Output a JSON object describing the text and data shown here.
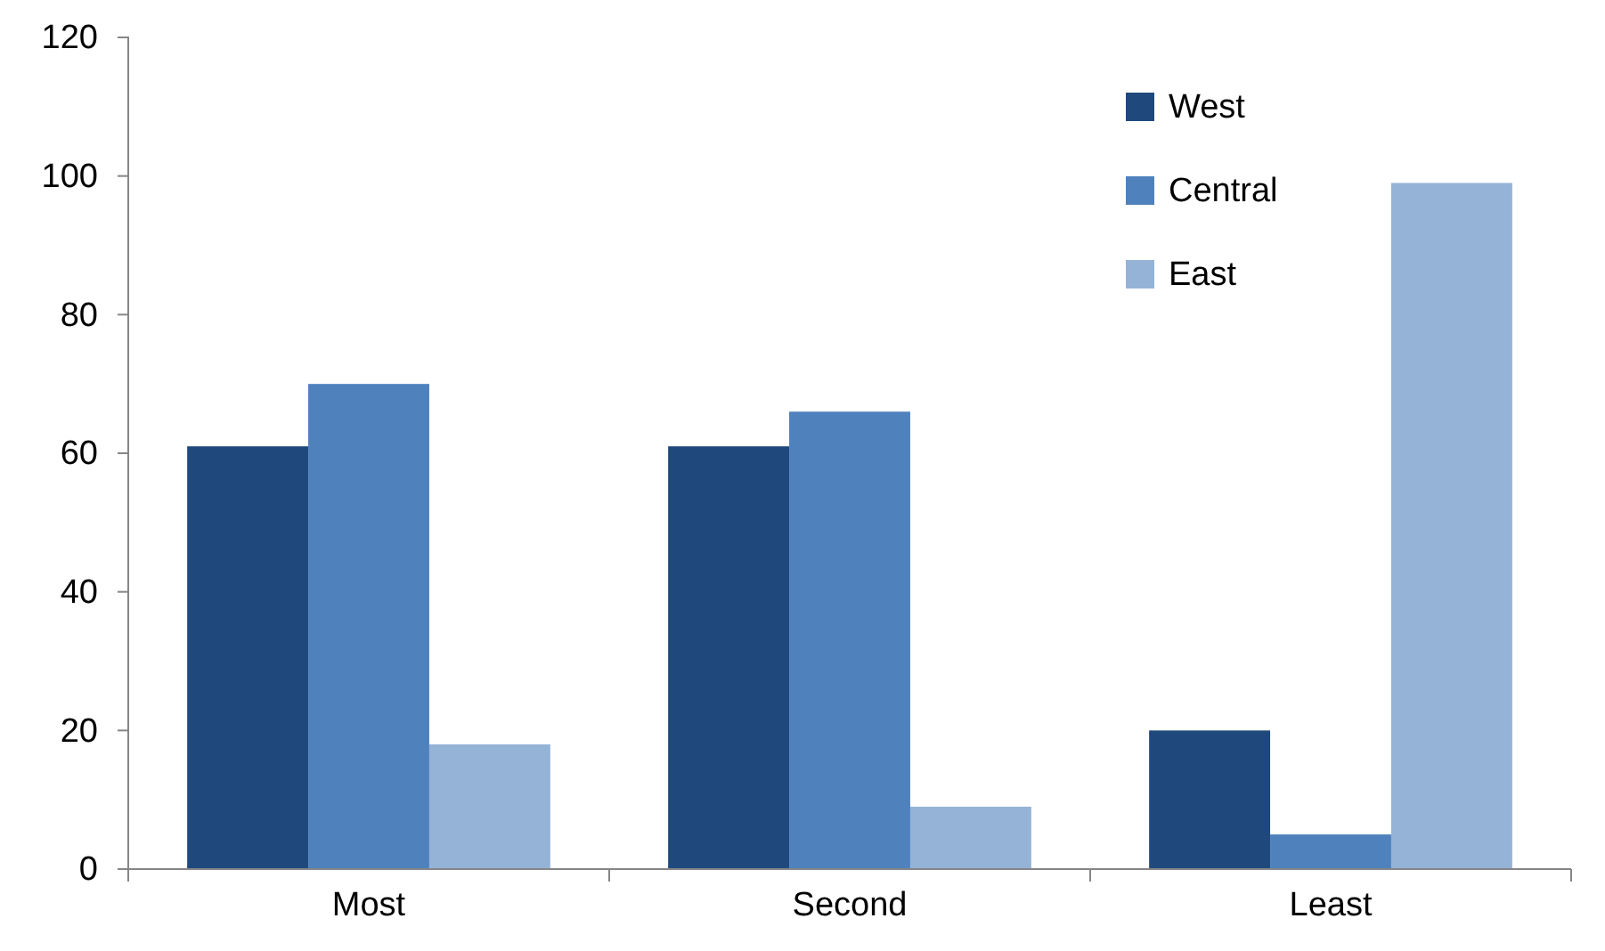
{
  "chart_data": {
    "type": "bar",
    "categories": [
      "Most",
      "Second",
      "Least"
    ],
    "series": [
      {
        "name": "West",
        "color": "#1f497d",
        "values": [
          61,
          61,
          20
        ]
      },
      {
        "name": "Central",
        "color": "#4f81bd",
        "values": [
          70,
          66,
          5
        ]
      },
      {
        "name": "East",
        "color": "#95b3d7",
        "values": [
          18,
          9,
          99
        ]
      }
    ],
    "ylim": [
      0,
      120
    ],
    "yticks": [
      0,
      20,
      40,
      60,
      80,
      100,
      120
    ],
    "grid": false,
    "legend": "top right"
  }
}
